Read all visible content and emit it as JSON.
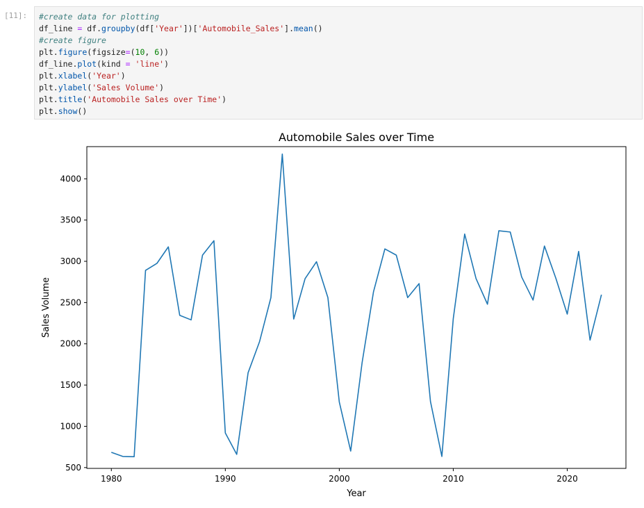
{
  "cell": {
    "prompt": "[11]:",
    "lines": [
      [
        {
          "t": "#create data for plotting",
          "k": "comment"
        }
      ],
      [
        {
          "t": "df_line",
          "k": "plain"
        },
        {
          "t": " = ",
          "k": "op"
        },
        {
          "t": "df.",
          "k": "plain"
        },
        {
          "t": "groupby",
          "k": "fn"
        },
        {
          "t": "(df[",
          "k": "plain"
        },
        {
          "t": "'Year'",
          "k": "str"
        },
        {
          "t": "])[",
          "k": "plain"
        },
        {
          "t": "'Automobile_Sales'",
          "k": "str"
        },
        {
          "t": "].",
          "k": "plain"
        },
        {
          "t": "mean",
          "k": "fn"
        },
        {
          "t": "()",
          "k": "plain"
        }
      ],
      [
        {
          "t": "#create figure",
          "k": "comment"
        }
      ],
      [
        {
          "t": "plt.",
          "k": "plain"
        },
        {
          "t": "figure",
          "k": "fn"
        },
        {
          "t": "(figsize",
          "k": "plain"
        },
        {
          "t": "=",
          "k": "op"
        },
        {
          "t": "(",
          "k": "plain"
        },
        {
          "t": "10",
          "k": "num"
        },
        {
          "t": ", ",
          "k": "plain"
        },
        {
          "t": "6",
          "k": "num"
        },
        {
          "t": "))",
          "k": "plain"
        }
      ],
      [
        {
          "t": "df_line.",
          "k": "plain"
        },
        {
          "t": "plot",
          "k": "fn"
        },
        {
          "t": "(kind ",
          "k": "plain"
        },
        {
          "t": "=",
          "k": "op"
        },
        {
          "t": " ",
          "k": "plain"
        },
        {
          "t": "'line'",
          "k": "str"
        },
        {
          "t": ")",
          "k": "plain"
        }
      ],
      [
        {
          "t": "plt.",
          "k": "plain"
        },
        {
          "t": "xlabel",
          "k": "fn"
        },
        {
          "t": "(",
          "k": "plain"
        },
        {
          "t": "'Year'",
          "k": "str"
        },
        {
          "t": ")",
          "k": "plain"
        }
      ],
      [
        {
          "t": "plt.",
          "k": "plain"
        },
        {
          "t": "ylabel",
          "k": "fn"
        },
        {
          "t": "(",
          "k": "plain"
        },
        {
          "t": "'Sales Volume'",
          "k": "str"
        },
        {
          "t": ")",
          "k": "plain"
        }
      ],
      [
        {
          "t": "plt.",
          "k": "plain"
        },
        {
          "t": "title",
          "k": "fn"
        },
        {
          "t": "(",
          "k": "plain"
        },
        {
          "t": "'Automobile Sales over Time'",
          "k": "str"
        },
        {
          "t": ")",
          "k": "plain"
        }
      ],
      [
        {
          "t": "plt.",
          "k": "plain"
        },
        {
          "t": "show",
          "k": "fn"
        },
        {
          "t": "()",
          "k": "plain"
        }
      ]
    ]
  },
  "colors": {
    "comment": "#408080",
    "string": "#ba2121",
    "number": "#008000",
    "operator": "#aa22ff",
    "function": "#0055aa",
    "plain": "#212121",
    "line": "#1f77b4"
  },
  "chart_data": {
    "type": "line",
    "title": "Automobile Sales over Time",
    "xlabel": "Year",
    "ylabel": "Sales Volume",
    "xlim": [
      1977.85,
      2025.15
    ],
    "ylim": [
      490,
      4390
    ],
    "xticks": [
      1980,
      1990,
      2000,
      2010,
      2020
    ],
    "yticks": [
      500,
      1000,
      1500,
      2000,
      2500,
      3000,
      3500,
      4000
    ],
    "grid": false,
    "legend": "none",
    "x": [
      1980,
      1981,
      1982,
      1983,
      1984,
      1985,
      1986,
      1987,
      1988,
      1989,
      1990,
      1991,
      1992,
      1993,
      1994,
      1995,
      1996,
      1997,
      1998,
      1999,
      2000,
      2001,
      2002,
      2003,
      2004,
      2005,
      2006,
      2007,
      2008,
      2009,
      2010,
      2011,
      2012,
      2013,
      2014,
      2015,
      2016,
      2017,
      2018,
      2019,
      2020,
      2021,
      2022,
      2023
    ],
    "series": [
      {
        "values": [
          685,
          635,
          632,
          2890,
          2975,
          3175,
          2345,
          2290,
          3075,
          3250,
          920,
          660,
          1650,
          2025,
          2560,
          4300,
          2300,
          2790,
          2995,
          2560,
          1295,
          700,
          1770,
          2630,
          3150,
          3075,
          2560,
          2730,
          1300,
          635,
          2305,
          3330,
          2790,
          2480,
          3370,
          3355,
          2810,
          2530,
          3185,
          2795,
          2360,
          3120,
          2045,
          2595
        ]
      }
    ]
  }
}
